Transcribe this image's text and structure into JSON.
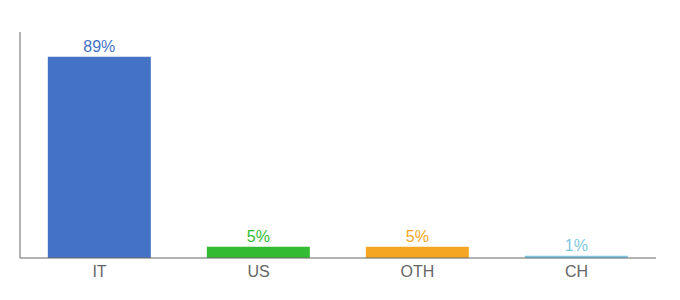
{
  "chart_data": {
    "type": "bar",
    "categories": [
      "IT",
      "US",
      "OTH",
      "CH"
    ],
    "values": [
      89,
      5,
      5,
      1
    ],
    "value_labels": [
      "89%",
      "5%",
      "5%",
      "1%"
    ],
    "colors": [
      "#4472C4",
      "#33BB33",
      "#F5A623",
      "#7EC8E3"
    ],
    "ylim": [
      0,
      100
    ],
    "data_labels": true,
    "tick_labels": "x",
    "grid": false
  }
}
